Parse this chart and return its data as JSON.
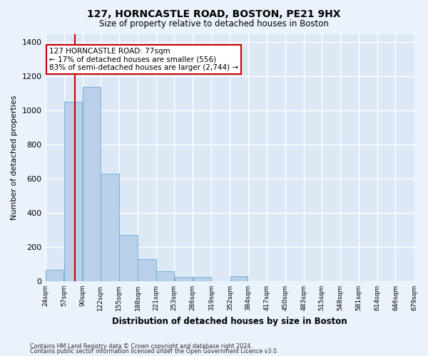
{
  "title": "127, HORNCASTLE ROAD, BOSTON, PE21 9HX",
  "subtitle": "Size of property relative to detached houses in Boston",
  "xlabel": "Distribution of detached houses by size in Boston",
  "ylabel": "Number of detached properties",
  "bar_color": "#b8d0ea",
  "bar_edge_color": "#7aafd4",
  "background_color": "#dce8f5",
  "grid_color": "#ffffff",
  "fig_bg_color": "#eaf2fb",
  "red_line_x": 77,
  "annotation_text": "127 HORNCASTLE ROAD: 77sqm\n← 17% of detached houses are smaller (556)\n83% of semi-detached houses are larger (2,744) →",
  "annotation_box_color": "#ffffff",
  "annotation_box_edge": "#cc0000",
  "footer_line1": "Contains HM Land Registry data © Crown copyright and database right 2024.",
  "footer_line2": "Contains public sector information licensed under the Open Government Licence v3.0.",
  "bins": [
    24,
    57,
    90,
    122,
    155,
    188,
    221,
    253,
    286,
    319,
    352,
    384,
    417,
    450,
    483,
    515,
    548,
    581,
    614,
    646,
    679
  ],
  "values": [
    65,
    1050,
    1140,
    630,
    270,
    130,
    60,
    25,
    25,
    0,
    30,
    0,
    0,
    0,
    0,
    0,
    0,
    0,
    0,
    0
  ],
  "ylim": [
    0,
    1450
  ],
  "yticks": [
    0,
    200,
    400,
    600,
    800,
    1000,
    1200,
    1400
  ]
}
